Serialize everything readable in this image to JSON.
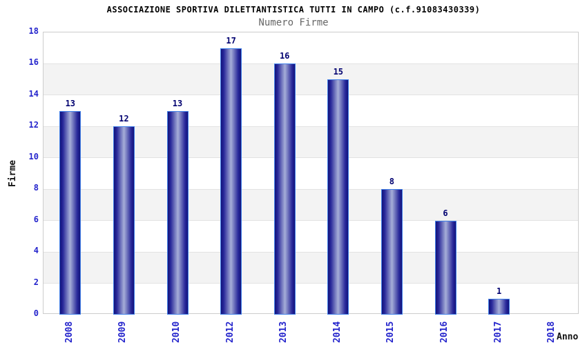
{
  "header": {
    "title": "ASSOCIAZIONE SPORTIVA DILETTANTISTICA TUTTI IN CAMPO (c.f.91083430339)",
    "subtitle": "Numero Firme"
  },
  "chart_data": {
    "type": "bar",
    "title": "ASSOCIAZIONE SPORTIVA DILETTANTISTICA TUTTI IN CAMPO (c.f.91083430339)",
    "subtitle": "Numero Firme",
    "categories": [
      "2008",
      "2009",
      "2010",
      "2012",
      "2013",
      "2014",
      "2015",
      "2016",
      "2017",
      "2018"
    ],
    "values": [
      13,
      12,
      13,
      17,
      16,
      15,
      8,
      6,
      1,
      null
    ],
    "xlabel": "Anno",
    "ylabel": "Firme",
    "ylim": [
      0,
      18
    ],
    "yticks": [
      0,
      2,
      4,
      6,
      8,
      10,
      12,
      14,
      16,
      18
    ],
    "grid": "alternating-horizontal-bands",
    "legend": "none",
    "colors": {
      "tick_label": "#2424cc",
      "value_label": "#000070",
      "bar_border": "#4080e8",
      "bar_dark": "#13137a",
      "bar_mid": "#28289a",
      "bar_light": "#a6aed8",
      "band_fill": "#f3f3f3",
      "band_edge": "#e2e2e2",
      "plot_border": "#cccccc",
      "title_color": "#000000",
      "subtitle_color": "#666666",
      "axis_title_color": "#111111"
    }
  }
}
